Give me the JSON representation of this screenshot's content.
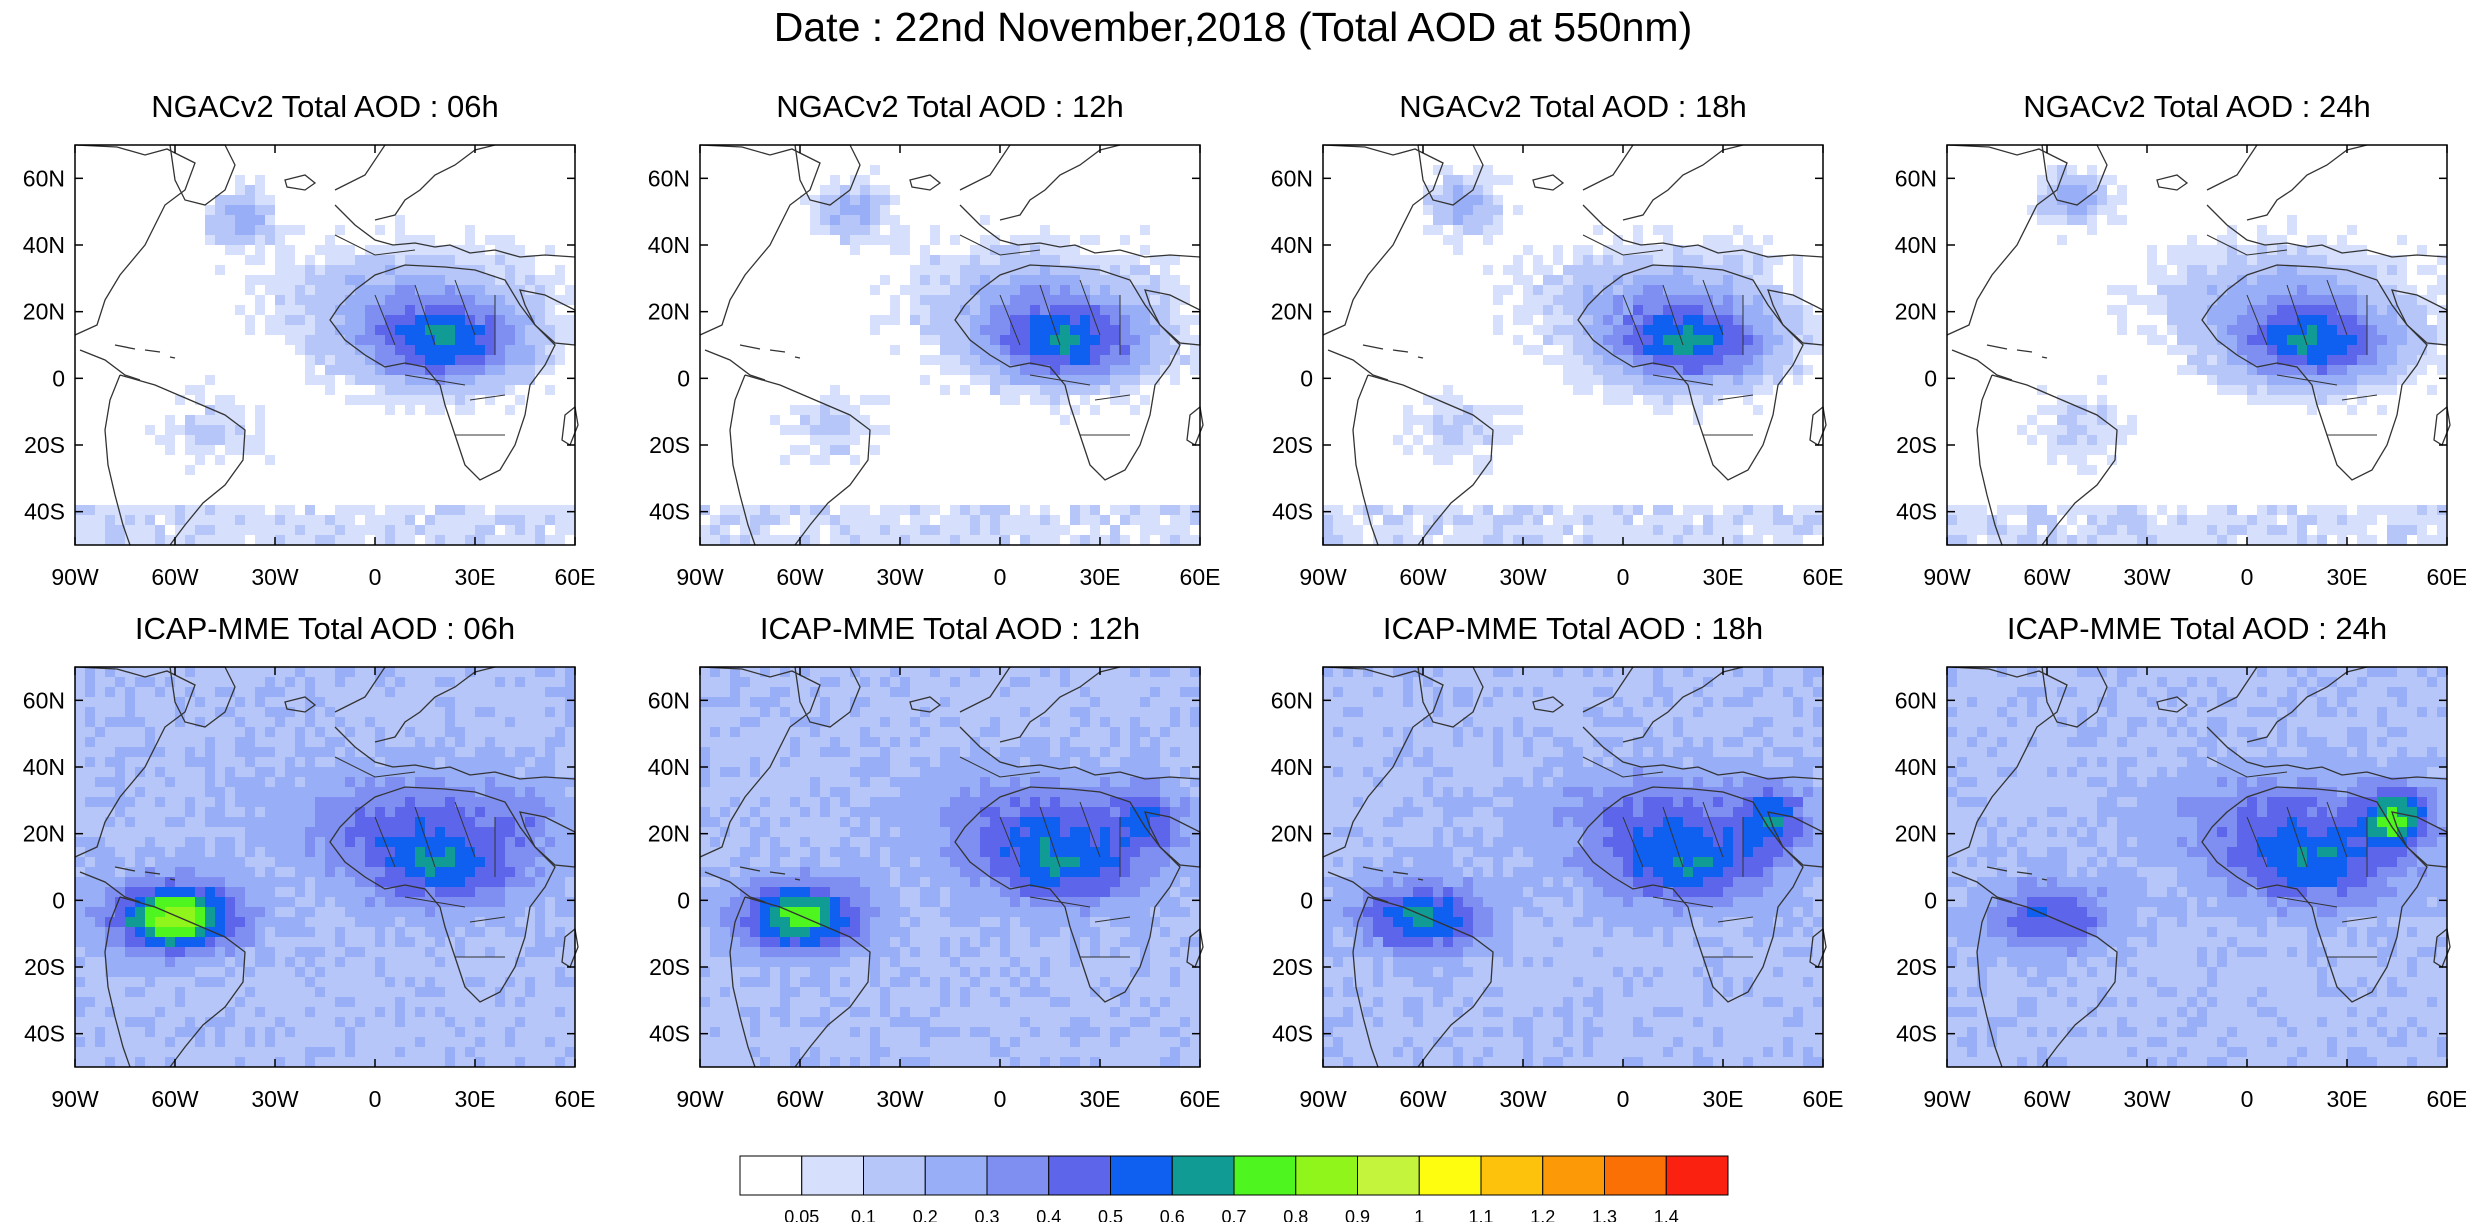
{
  "title": "Date : 22nd November,2018 (Total AOD at 550nm)",
  "axes": {
    "lon_ticks": [
      "90W",
      "60W",
      "30W",
      "0",
      "30E",
      "60E"
    ],
    "lat_ticks": [
      "60N",
      "40N",
      "20N",
      "0",
      "20S",
      "40S"
    ],
    "lon_range": [
      -90,
      60
    ],
    "lat_range": [
      -50,
      70
    ]
  },
  "panels": [
    {
      "title": "NGACv2 Total AOD : 06h",
      "model": "NGACv2",
      "lead": "06h"
    },
    {
      "title": "NGACv2 Total AOD : 12h",
      "model": "NGACv2",
      "lead": "12h"
    },
    {
      "title": "NGACv2 Total AOD : 18h",
      "model": "NGACv2",
      "lead": "18h"
    },
    {
      "title": "NGACv2 Total AOD : 24h",
      "model": "NGACv2",
      "lead": "24h"
    },
    {
      "title": "ICAP-MME Total AOD : 06h",
      "model": "ICAP-MME",
      "lead": "06h"
    },
    {
      "title": "ICAP-MME Total AOD : 12h",
      "model": "ICAP-MME",
      "lead": "12h"
    },
    {
      "title": "ICAP-MME Total AOD : 18h",
      "model": "ICAP-MME",
      "lead": "18h"
    },
    {
      "title": "ICAP-MME Total AOD : 24h",
      "model": "ICAP-MME",
      "lead": "24h"
    }
  ],
  "colorbar": {
    "labels": [
      "0.05",
      "0.1",
      "0.2",
      "0.3",
      "0.4",
      "0.5",
      "0.6",
      "0.7",
      "0.8",
      "0.9",
      "1",
      "1.1",
      "1.2",
      "1.3",
      "1.4"
    ],
    "colors": [
      "#ffffff",
      "#d6dffb",
      "#b7c6f8",
      "#98aef6",
      "#7f8ff1",
      "#5d66ea",
      "#0f5ff0",
      "#119b95",
      "#4ef51e",
      "#8ff51a",
      "#c4f53c",
      "#fffd0f",
      "#fdc20b",
      "#fc9907",
      "#fb7005",
      "#fa2111"
    ]
  },
  "styles": {
    "land_outline": "#333333",
    "ocean_background": "#ffffff"
  }
}
